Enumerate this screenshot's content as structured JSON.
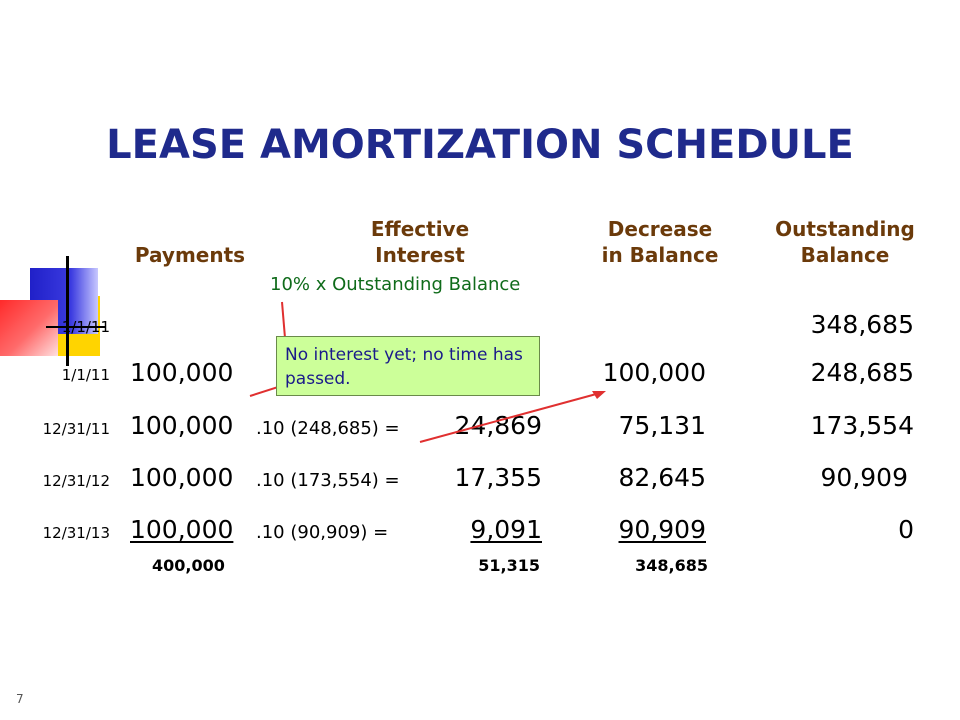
{
  "title": "LEASE AMORTIZATION SCHEDULE",
  "headers": {
    "payments": "Payments",
    "interest_line1": "Effective",
    "interest_line2": "Interest",
    "decrease_line1": "Decrease",
    "decrease_line2": "in Balance",
    "outstanding_line1": "Outstanding",
    "outstanding_line2": "Balance"
  },
  "interest_note": "10% x Outstanding Balance",
  "callout": "No interest yet; no time has passed.",
  "rows": [
    {
      "date": "1/1/11",
      "payment": "",
      "calc": "",
      "interest": "",
      "decrease": "",
      "balance": "348,685"
    },
    {
      "date": "1/1/11",
      "payment": "100,000",
      "calc": "",
      "interest": "",
      "decrease": "100,000",
      "balance": "248,685"
    },
    {
      "date": "12/31/11",
      "payment": "100,000",
      "calc": ".10 (248,685) =",
      "interest": "24,869",
      "decrease": "75,131",
      "balance": "173,554"
    },
    {
      "date": "12/31/12",
      "payment": "100,000",
      "calc": ".10 (173,554) =",
      "interest": "17,355",
      "decrease": "82,645",
      "balance": "90,909"
    },
    {
      "date": "12/31/13",
      "payment": "100,000",
      "calc": ".10 (90,909) =",
      "interest": "9,091",
      "decrease": "90,909",
      "balance": "0"
    }
  ],
  "totals": {
    "payments": "400,000",
    "interest": "51,315",
    "decrease": "348,685"
  },
  "slide_number": "7"
}
